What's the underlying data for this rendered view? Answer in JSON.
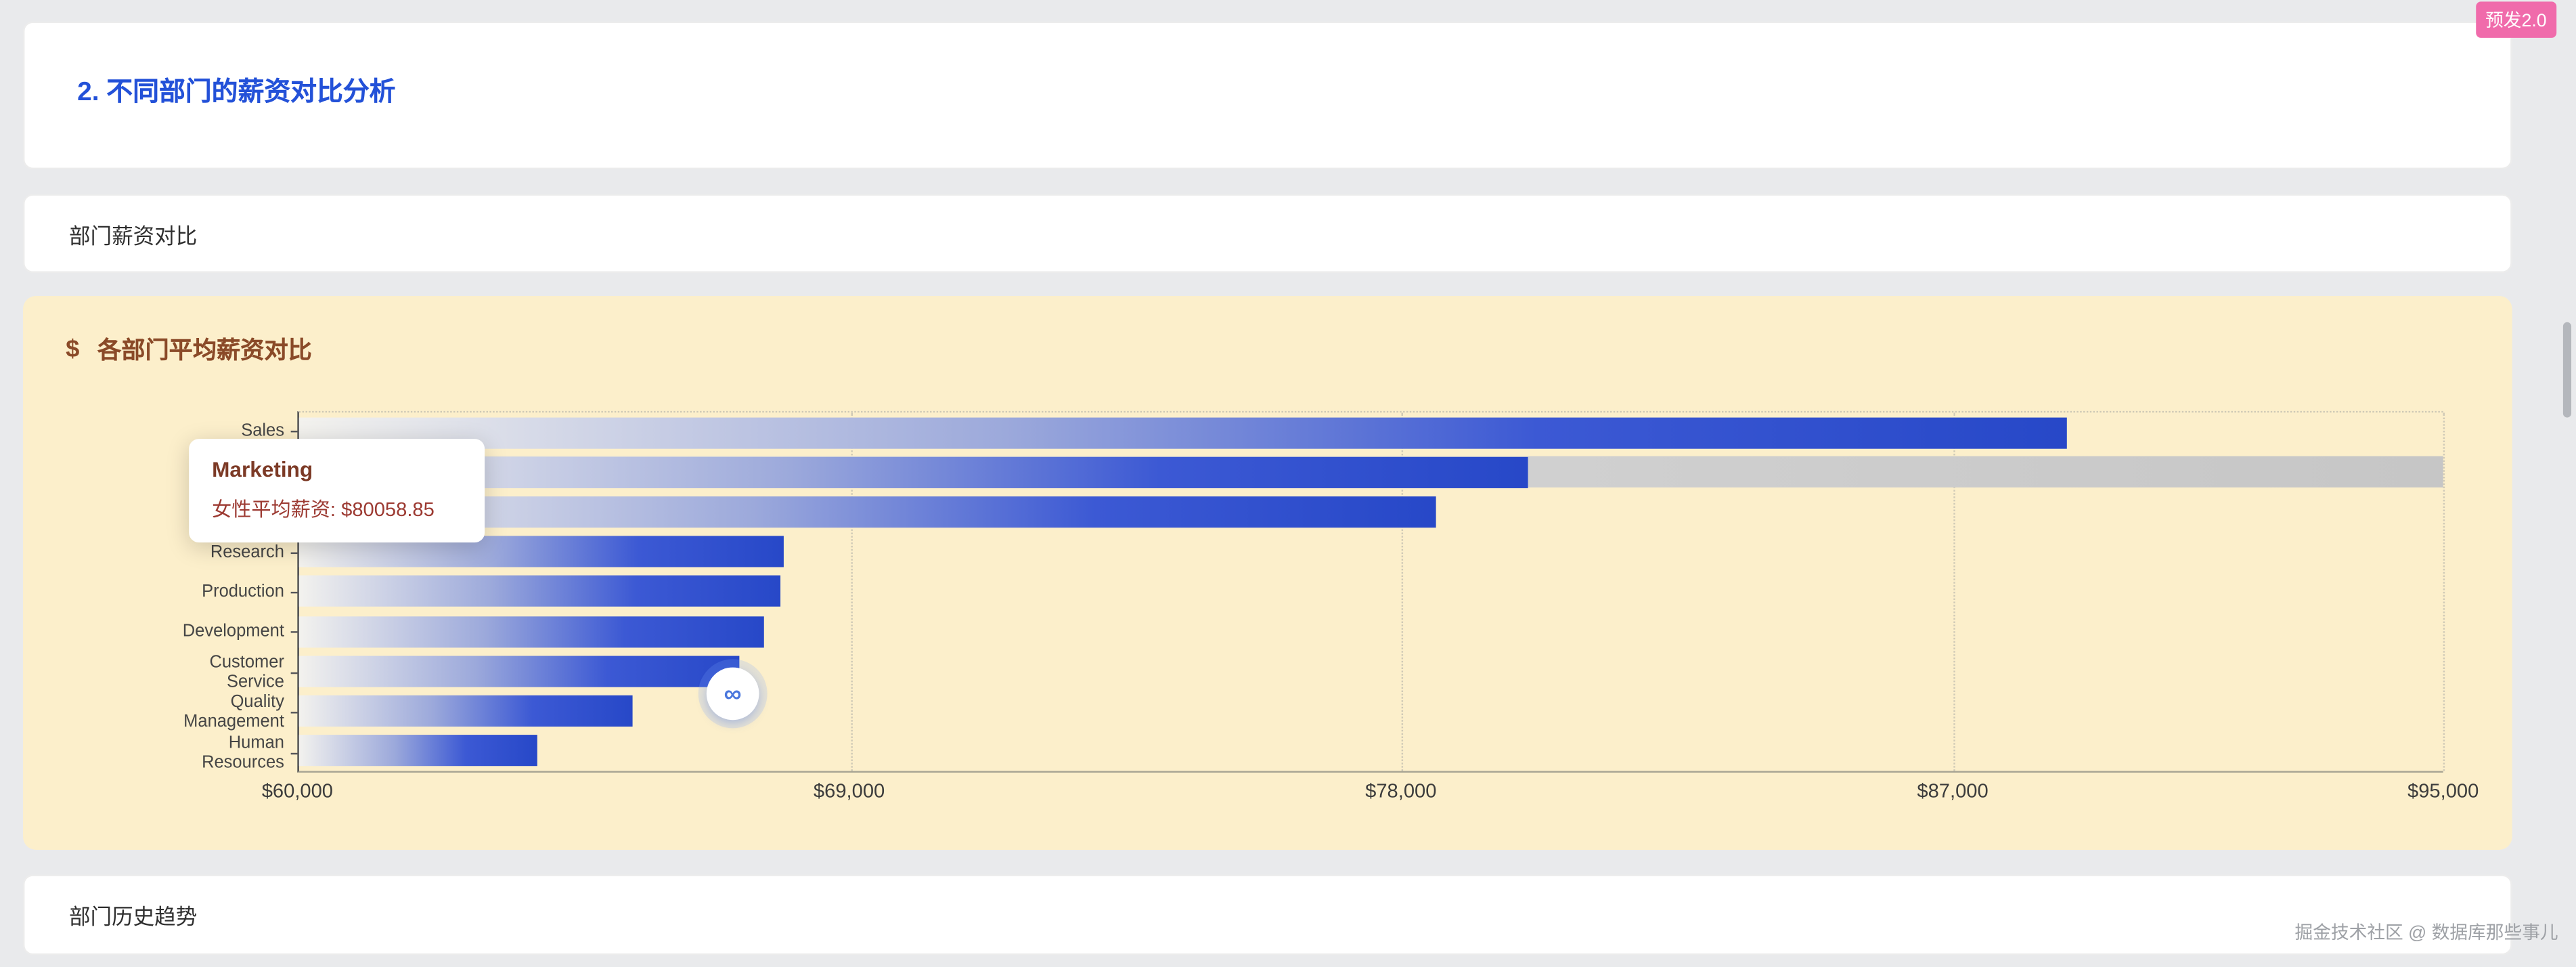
{
  "badge": {
    "label": "预发2.0"
  },
  "header": {
    "title": "2. 不同部门的薪资对比分析"
  },
  "compare_card": {
    "label": "部门薪资对比"
  },
  "history_card": {
    "label": "部门历史趋势"
  },
  "chart_card": {
    "icon_glyph": "$",
    "title": "各部门平均薪资对比"
  },
  "tooltip": {
    "title": "Marketing",
    "body": "女性平均薪资: $80058.85"
  },
  "float_button": {
    "glyph": "∞"
  },
  "watermark": "掘金技术社区 @ 数据库那些事儿",
  "colors": {
    "accent_blue": "#2351d8",
    "card_cream": "#fcefcb",
    "title_brown": "#8a4a28",
    "badge_pink": "#f06bab",
    "bar_blue": "#2c4fd0",
    "hover_band_gray": "#c9c9c9"
  },
  "chart_data": {
    "type": "bar",
    "orientation": "horizontal",
    "title": "各部门平均薪资对比",
    "series": "女性平均薪资",
    "categories": [
      "Sales",
      "Marketing",
      "",
      "Research",
      "Production",
      "Development",
      "Customer Service",
      "Quality Management",
      "Human Resources"
    ],
    "values": [
      88850,
      80058.85,
      78550,
      67900,
      67850,
      67600,
      67200,
      65450,
      63900
    ],
    "xlim": [
      60000,
      95000
    ],
    "x_ticks": [
      "$60,000",
      "$69,000",
      "$78,000",
      "$87,000",
      "$95,000"
    ],
    "x_tick_values": [
      60000,
      69000,
      78000,
      87000,
      95000
    ],
    "highlighted_index": 1,
    "grid": "dotted-vertical",
    "legend": "none"
  }
}
